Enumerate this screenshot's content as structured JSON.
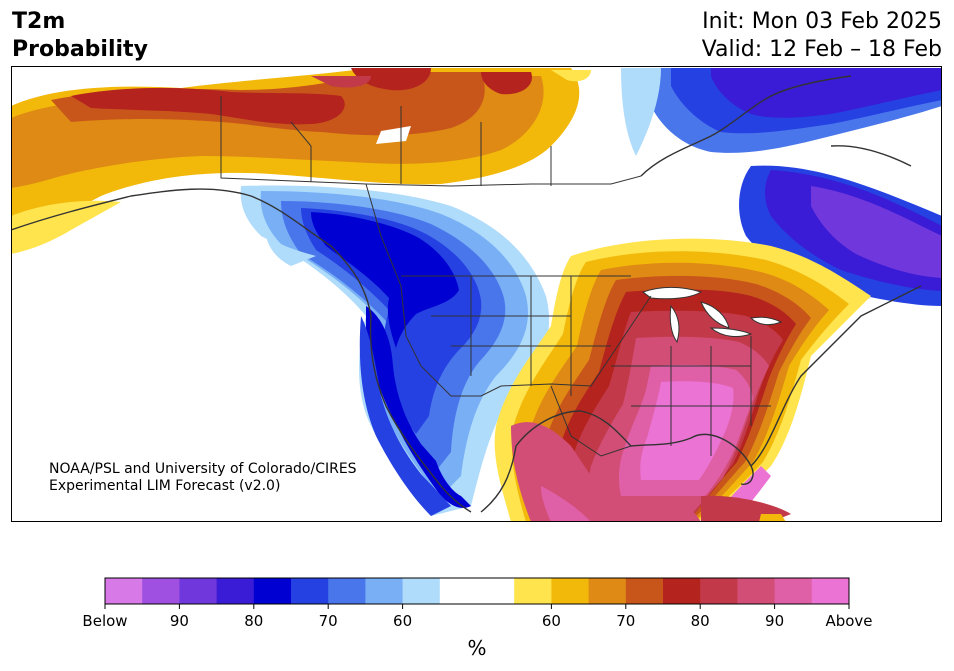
{
  "header": {
    "variable": "T2m",
    "product": "Probability",
    "init": "Init: Mon 03 Feb 2025",
    "valid": "Valid: 12 Feb – 18 Feb"
  },
  "credit": {
    "line1": "NOAA/PSL and University of Colorado/CIRES",
    "line2": "Experimental LIM Forecast (v2.0)"
  },
  "colorbar": {
    "below_colors": [
      "#d77ae8",
      "#a050e0",
      "#7038dc",
      "#3a1bd6",
      "#0000d2",
      "#2541e2",
      "#4a76ec",
      "#79b0f5",
      "#b0dcfc"
    ],
    "neutral_color": "#ffffff",
    "above_colors": [
      "#ffe44d",
      "#f2b90a",
      "#de8a14",
      "#c8561a",
      "#b4231e",
      "#c23a4a",
      "#d24e76",
      "#e060a8",
      "#ea73d4"
    ],
    "tick_labels": [
      "Below",
      "90",
      "80",
      "70",
      "60",
      "60",
      "70",
      "80",
      "90",
      "Above"
    ],
    "unit": "%"
  }
}
